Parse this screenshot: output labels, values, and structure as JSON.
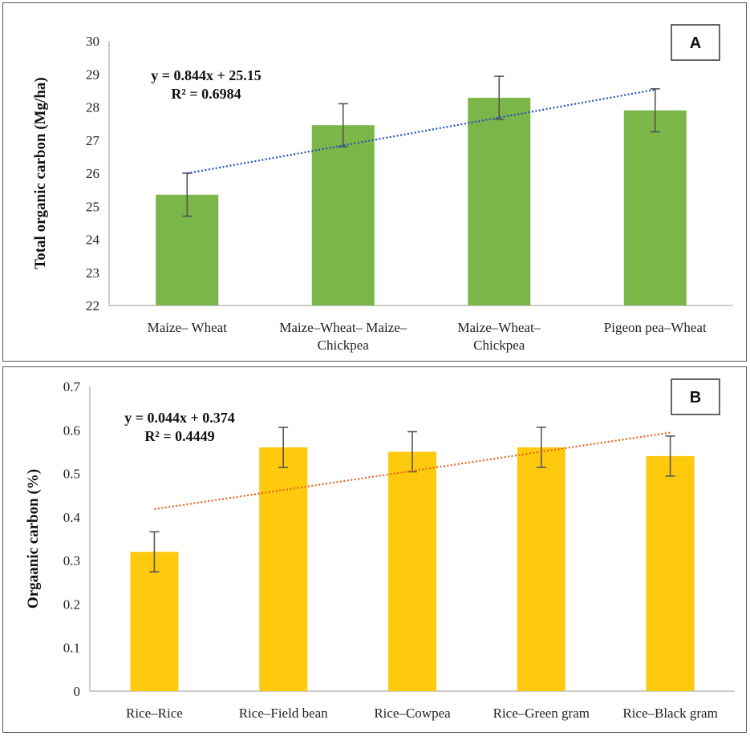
{
  "chart_data": [
    {
      "type": "bar",
      "panel_label": "A",
      "title": "",
      "xlabel": "",
      "ylabel": "Total organic carbon (Mg/ha)",
      "ylim": [
        22,
        30
      ],
      "ytick_step": 1,
      "yticks": [
        "22",
        "23",
        "24",
        "25",
        "26",
        "27",
        "28",
        "29",
        "30"
      ],
      "categories": [
        [
          "Maize– Wheat"
        ],
        [
          "Maize–Wheat– Maize–",
          "Chickpea"
        ],
        [
          "Maize–Wheat–",
          "Chickpea"
        ],
        [
          "Pigeon pea–Wheat"
        ]
      ],
      "values": [
        25.35,
        27.45,
        28.28,
        27.9
      ],
      "errors": [
        0.65,
        0.65,
        0.65,
        0.65
      ],
      "bar_color": "#7ab648",
      "trendline": {
        "slope": 0.844,
        "intercept": 25.15,
        "color": "#1f4fbf",
        "equation": "y = 0.844x + 25.15",
        "r2": "R² = 0.6984"
      }
    },
    {
      "type": "bar",
      "panel_label": "B",
      "title": "",
      "xlabel": "",
      "ylabel": "Orgaanic carbon (%)",
      "ylim": [
        0,
        0.7
      ],
      "ytick_step": 0.1,
      "yticks": [
        "0",
        "0.1",
        "0.2",
        "0.3",
        "0.4",
        "0.5",
        "0.6",
        "0.7"
      ],
      "categories": [
        [
          "Rice–Rice"
        ],
        [
          "Rice–Field bean"
        ],
        [
          "Rice–Cowpea"
        ],
        [
          "Rice–Green gram"
        ],
        [
          "Rice–Black gram"
        ]
      ],
      "values": [
        0.32,
        0.56,
        0.55,
        0.56,
        0.54
      ],
      "errors": [
        0.046,
        0.046,
        0.046,
        0.046,
        0.046
      ],
      "bar_color": "#ffc90e",
      "trendline": {
        "slope": 0.044,
        "intercept": 0.374,
        "color": "#e8631c",
        "equation": "y = 0.044x + 0.374",
        "r2": "R² = 0.4449"
      }
    }
  ]
}
